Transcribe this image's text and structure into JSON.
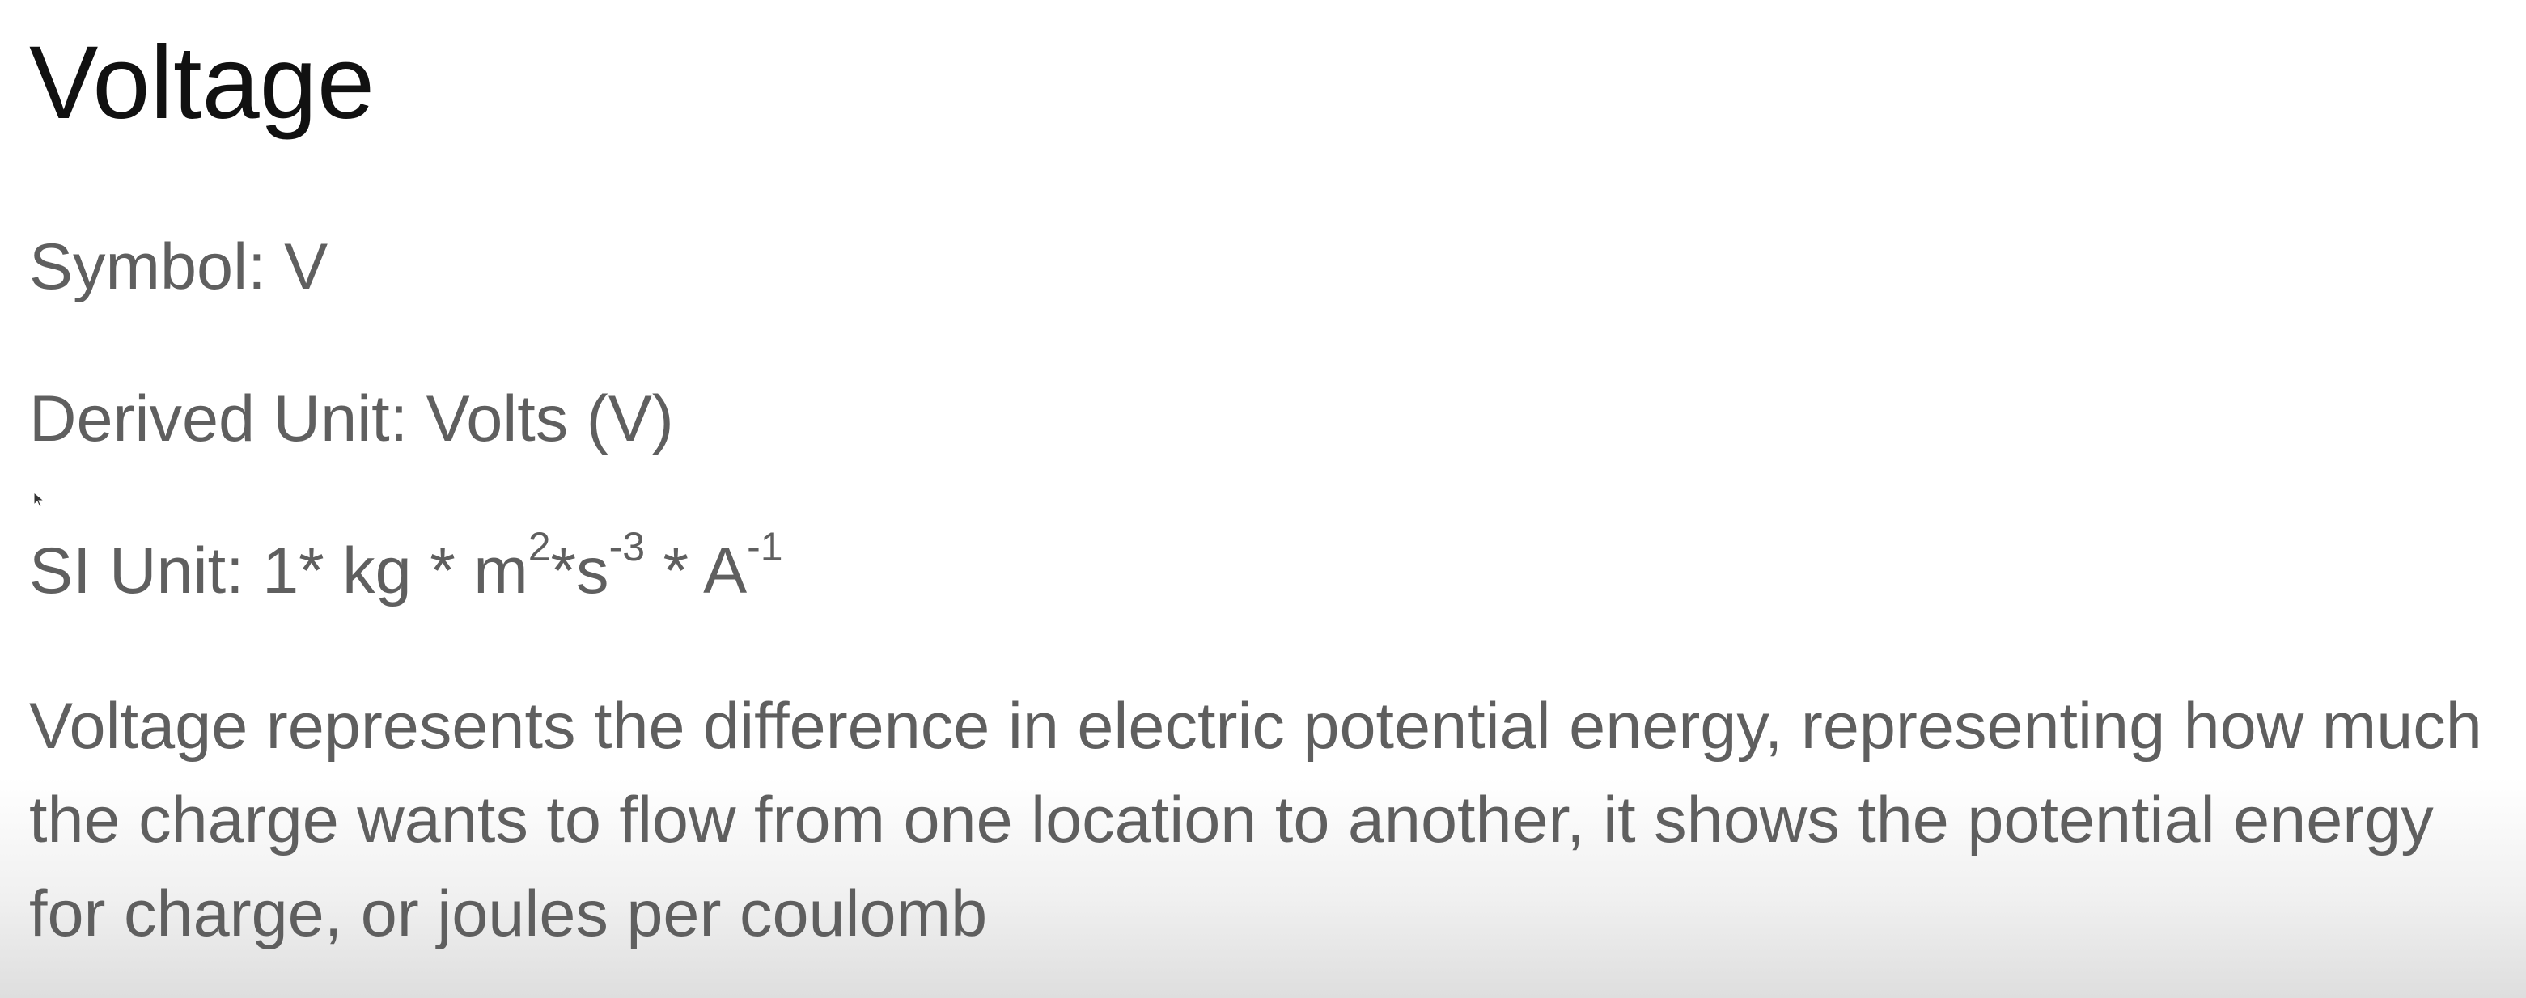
{
  "slide": {
    "title": "Voltage",
    "symbol_line": "Symbol: V",
    "derived_unit_line": "Derived Unit: Volts (V)",
    "si_unit": {
      "prefix": "SI Unit: 1* kg * m",
      "m_exponent": "2",
      "sep1": "*s",
      "s_exponent": "-3",
      "sep2": " * A",
      "a_exponent": "-1"
    },
    "description": "Voltage represents the difference in electric potential energy, representing how much the charge wants to flow from one location to another, it shows the potential energy for charge, or joules per coulomb"
  },
  "cursor": {
    "icon": "mouse-pointer-icon",
    "color": "#333333"
  }
}
